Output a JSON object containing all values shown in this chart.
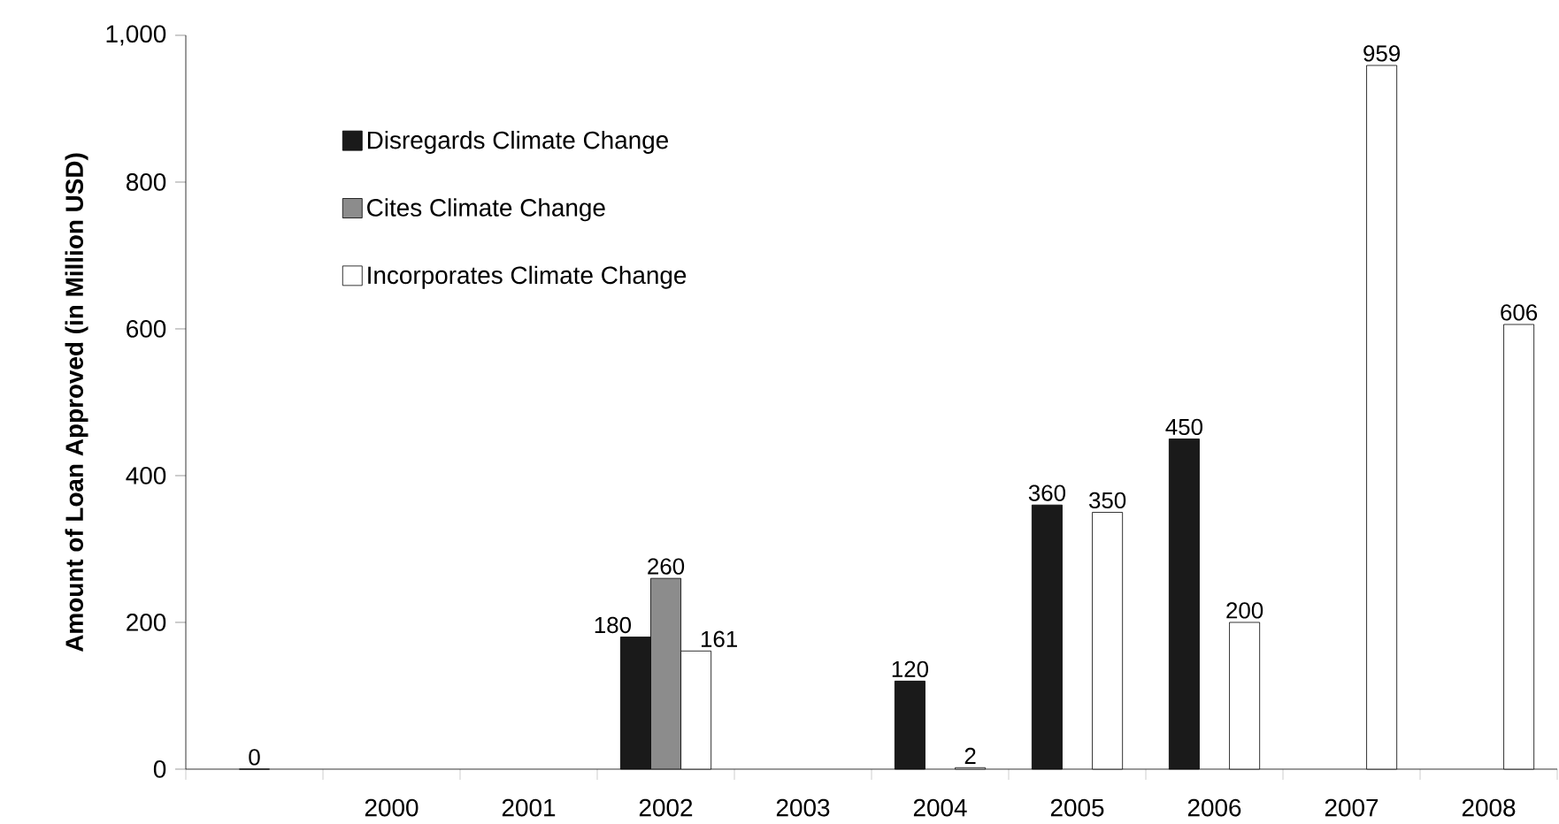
{
  "chart_data": {
    "type": "bar",
    "ylabel": "Amount of Loan Approved (in Million USD)",
    "categories": [
      null,
      "2000",
      "2001",
      "2002",
      "2003",
      "2004",
      "2005",
      "2006",
      "2007",
      "2008"
    ],
    "series": [
      {
        "name": "Disregards Climate Change",
        "color": "#1a1a1a",
        "values": [
          null,
          null,
          null,
          180,
          null,
          120,
          360,
          450,
          null,
          null
        ],
        "value_labels": [
          null,
          null,
          null,
          "180",
          null,
          "120",
          "360",
          "450",
          null,
          null
        ]
      },
      {
        "name": "Cites Climate Change",
        "color": "#8c8c8c",
        "values": [
          0,
          null,
          null,
          260,
          null,
          null,
          null,
          null,
          null,
          null
        ],
        "value_labels": [
          "0",
          null,
          null,
          "260",
          null,
          null,
          null,
          null,
          null,
          null
        ]
      },
      {
        "name": "Incorporates Climate Change",
        "color": "#ffffff",
        "values": [
          null,
          null,
          null,
          161,
          null,
          2,
          350,
          200,
          959,
          606
        ],
        "value_labels": [
          null,
          null,
          null,
          "161",
          null,
          "2",
          "350",
          "200",
          "959",
          "606"
        ]
      }
    ],
    "ylim": [
      0,
      1000
    ],
    "yticks": [
      0,
      200,
      400,
      600,
      800,
      {
        "value": 1000,
        "label": "1,000"
      }
    ],
    "legend": "top left",
    "grid": false
  }
}
